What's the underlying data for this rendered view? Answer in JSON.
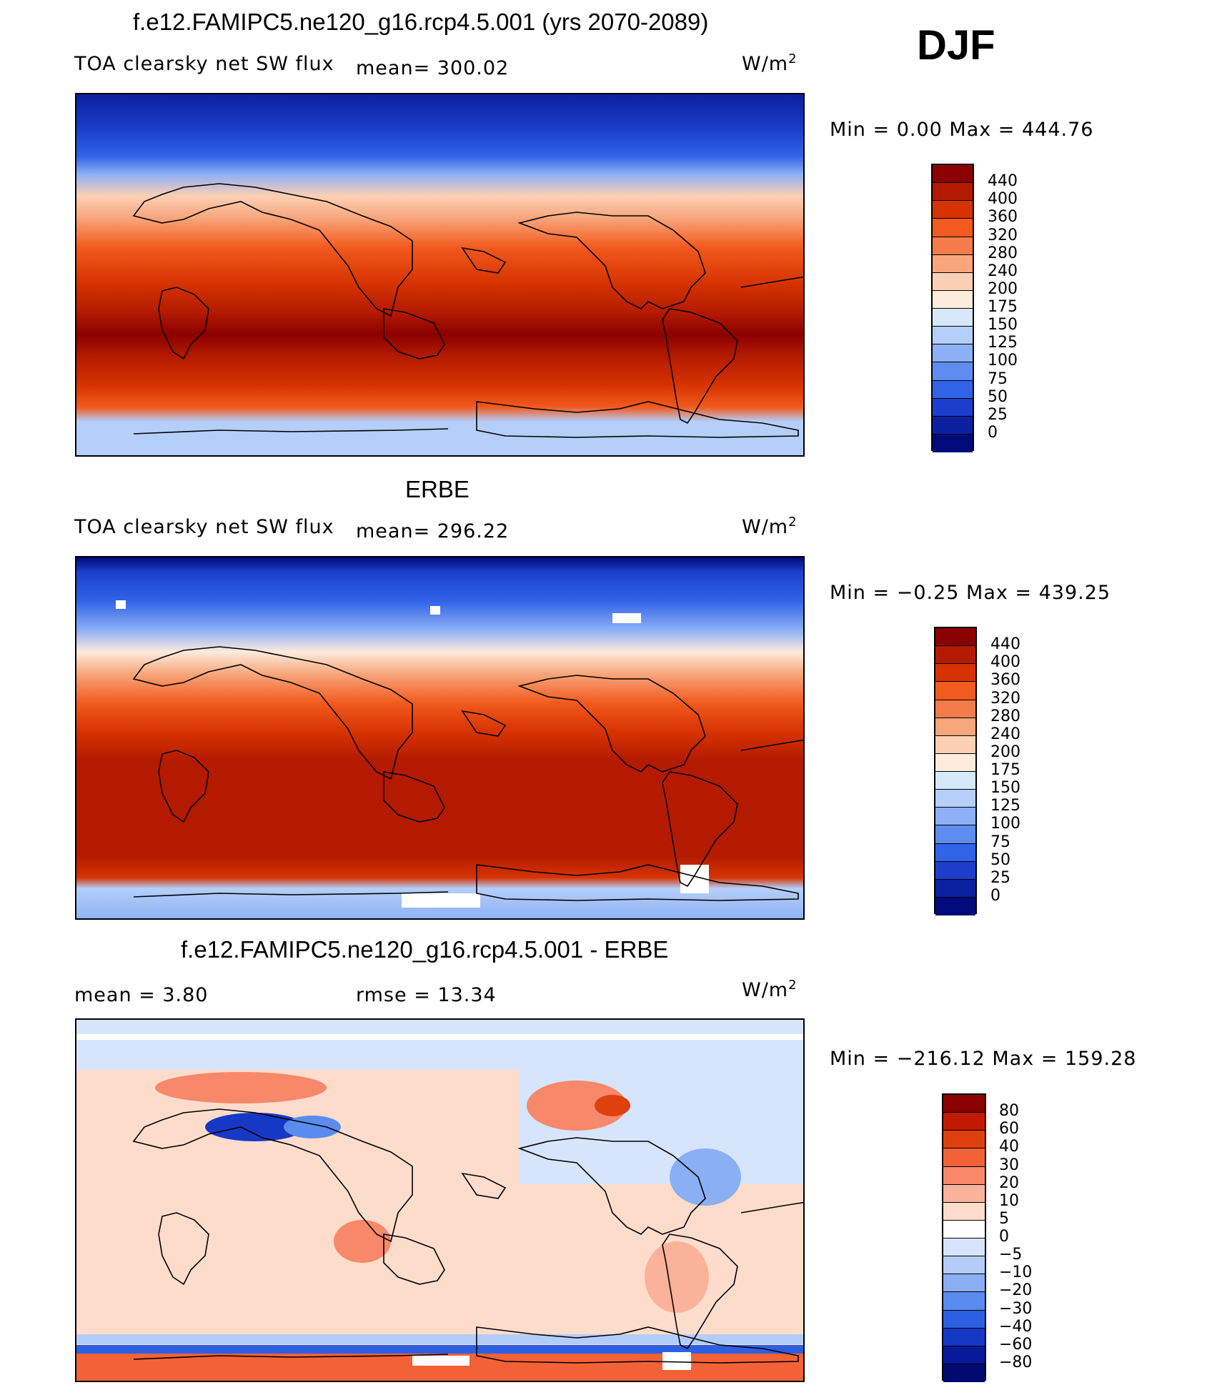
{
  "header": {
    "season": "DJF"
  },
  "panels": [
    {
      "title": "f.e12.FAMIPC5.ne120_g16.rcp4.5.001 (yrs 2070-2089)",
      "variable": "TOA clearsky net SW flux",
      "stat": "mean=  300.02",
      "units": "W/m",
      "units_exp": "2",
      "minmax": "Min  =     0.00  Max  =  444.76",
      "colorbar_labels": [
        "440",
        "400",
        "360",
        "320",
        "280",
        "240",
        "200",
        "175",
        "150",
        "125",
        "100",
        "75",
        "50",
        "25",
        "0"
      ]
    },
    {
      "title": "ERBE",
      "variable": "TOA clearsky net SW flux",
      "stat": "mean=  296.22",
      "units": "W/m",
      "units_exp": "2",
      "minmax": "Min  =   −0.25  Max  =  439.25",
      "colorbar_labels": [
        "440",
        "400",
        "360",
        "320",
        "280",
        "240",
        "200",
        "175",
        "150",
        "125",
        "100",
        "75",
        "50",
        "25",
        "0"
      ]
    },
    {
      "title": "f.e12.FAMIPC5.ne120_g16.rcp4.5.001 - ERBE",
      "mean_text": "mean  =      3.80",
      "rmse_text": "rmse  =     13.34",
      "units": "W/m",
      "units_exp": "2",
      "minmax": "Min  =  −216.12  Max  =  159.28",
      "colorbar_labels": [
        "80",
        "60",
        "40",
        "30",
        "20",
        "10",
        "5",
        "0",
        "−5",
        "−10",
        "−20",
        "−30",
        "−40",
        "−60",
        "−80"
      ]
    }
  ],
  "colors": {
    "abs_scale": [
      "#8b0000",
      "#b31a00",
      "#d63300",
      "#f25a1e",
      "#f47c4a",
      "#f8a67c",
      "#fcd0b4",
      "#fdebdc",
      "#d8e8fb",
      "#b4cffa",
      "#8db0f6",
      "#5e8cf0",
      "#3163e8",
      "#1b3fcc",
      "#0a20a0",
      "#000a7a"
    ],
    "diff_scale": [
      "#8b0000",
      "#c21a00",
      "#e0400d",
      "#f26236",
      "#f7886a",
      "#fbb29a",
      "#fddccc",
      "#ffffff",
      "#d6e5fb",
      "#b3cdf8",
      "#8aaff4",
      "#5a8bee",
      "#2c5fe2",
      "#1638c6",
      "#08199a",
      "#000a70"
    ],
    "land_outline": "#000000"
  }
}
